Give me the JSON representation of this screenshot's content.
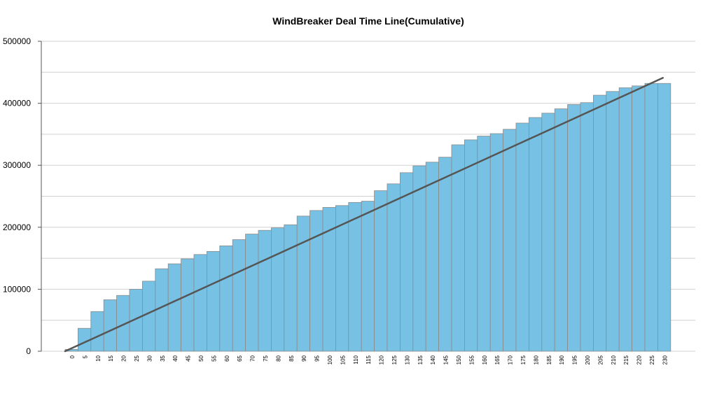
{
  "chart_data": {
    "type": "bar",
    "title": "WindBreaker Deal Time Line(Cumulative)",
    "xlabel": "",
    "ylabel": "",
    "ylim": [
      0,
      500000
    ],
    "y_ticks": [
      0,
      100000,
      200000,
      300000,
      400000,
      500000
    ],
    "y_tick_labels": [
      "0",
      "100000",
      "200000",
      "300000",
      "400000",
      "500000"
    ],
    "grid": true,
    "bar_color": "#77c2e4",
    "bar_edge_color": "#8a8a8a",
    "line_color": "#555555",
    "categories": [
      "0",
      "5",
      "10",
      "15",
      "20",
      "25",
      "30",
      "35",
      "40",
      "45",
      "50",
      "55",
      "60",
      "65",
      "70",
      "75",
      "80",
      "85",
      "90",
      "95",
      "100",
      "105",
      "110",
      "115",
      "120",
      "125",
      "130",
      "135",
      "140",
      "145",
      "150",
      "155",
      "160",
      "165",
      "170",
      "175",
      "180",
      "185",
      "190",
      "195",
      "200",
      "205",
      "210",
      "215",
      "220",
      "225",
      "230"
    ],
    "values": [
      3000,
      37000,
      64000,
      83000,
      90000,
      100000,
      113000,
      133000,
      141000,
      149000,
      156000,
      161000,
      170000,
      180000,
      189000,
      195000,
      199000,
      204000,
      218000,
      227000,
      232000,
      235000,
      240000,
      242000,
      259000,
      270000,
      288000,
      299000,
      305000,
      313000,
      333000,
      341000,
      347000,
      351000,
      358000,
      368000,
      377000,
      384000,
      391000,
      398000,
      401000,
      413000,
      419000,
      425000,
      428000,
      432000,
      432000
    ],
    "trend_line": {
      "x_start": 0,
      "y_start": 0,
      "x_end": 232,
      "y_end": 441000
    }
  }
}
